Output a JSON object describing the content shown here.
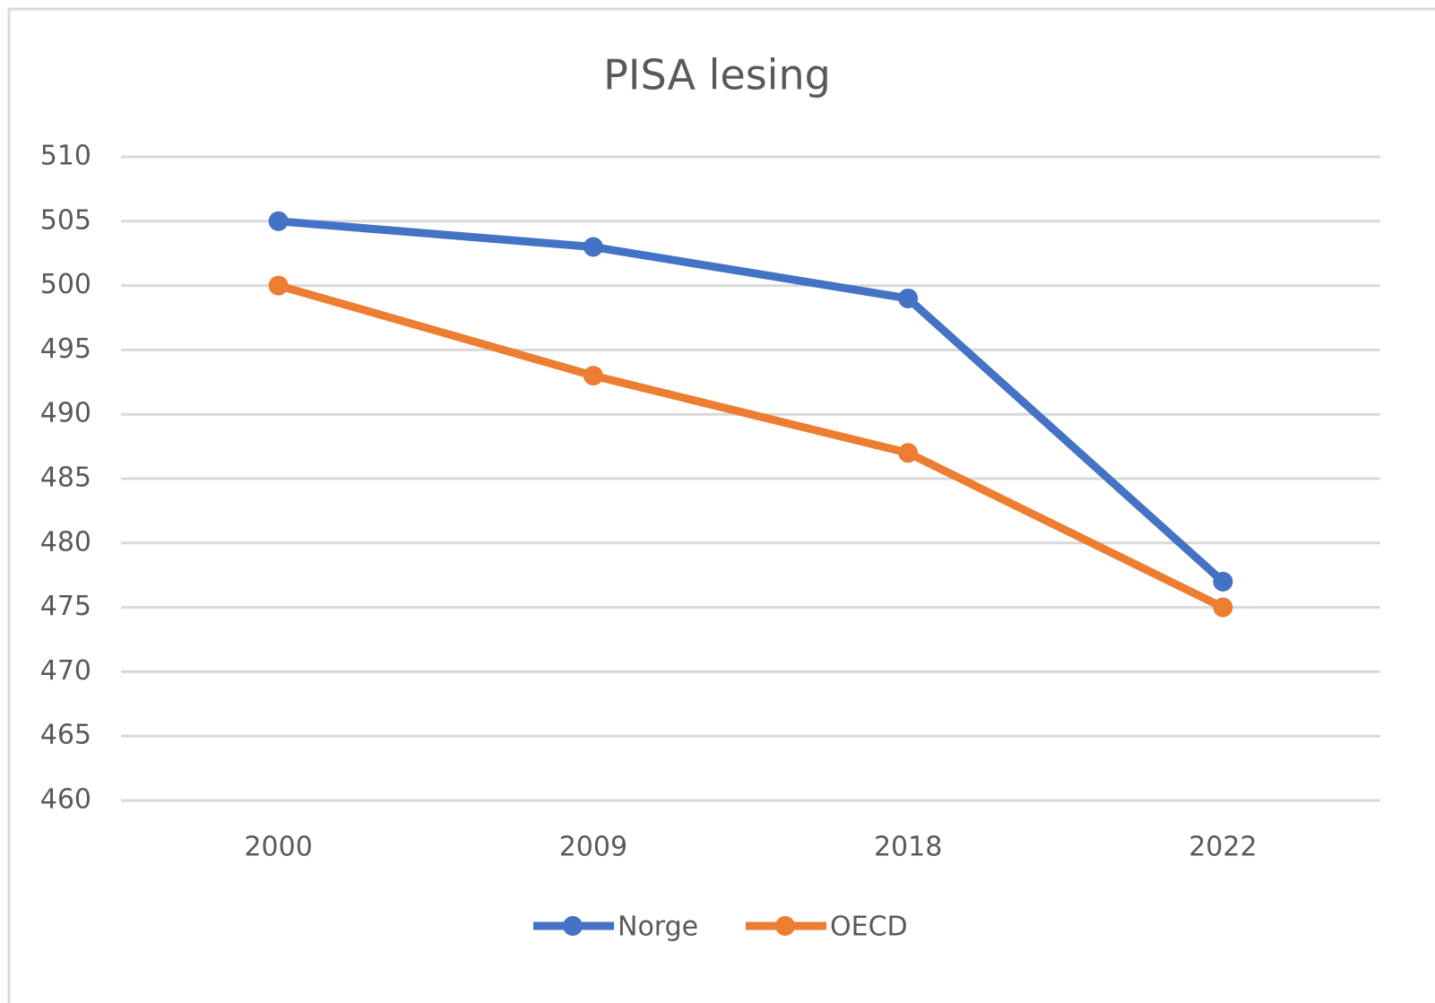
{
  "chart_data": {
    "type": "line",
    "title": "PISA lesing",
    "categories": [
      "2000",
      "2009",
      "2018",
      "2022"
    ],
    "series": [
      {
        "name": "Norge",
        "color": "#4472c4",
        "values": [
          505,
          503,
          499,
          477
        ]
      },
      {
        "name": "OECD",
        "color": "#ed7d31",
        "values": [
          500,
          493,
          487,
          475
        ]
      }
    ],
    "ylim": [
      460,
      510
    ],
    "yticks": [
      460,
      465,
      470,
      475,
      480,
      485,
      490,
      495,
      500,
      505,
      510
    ],
    "grid": true,
    "legend": "bottom"
  }
}
